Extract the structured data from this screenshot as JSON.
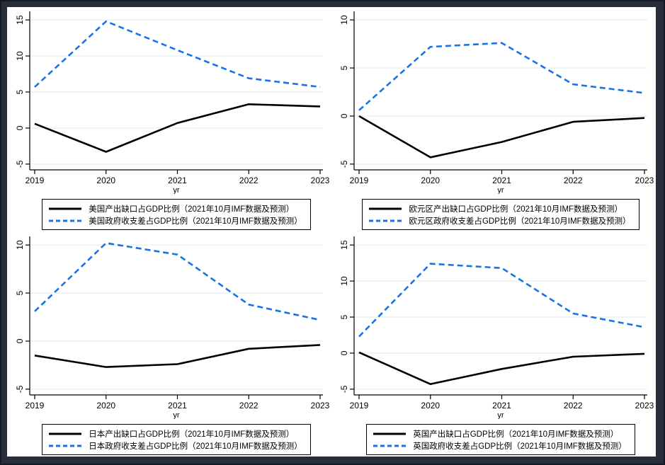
{
  "frame": {
    "border_color": "#151923",
    "background": "#272d3b",
    "panel_background": "#ffffff"
  },
  "colors": {
    "output_gap_line": "#000000",
    "fiscal_balance_line": "#1873e8",
    "gridline": "#e9f0f1",
    "axis": "#000000",
    "text": "#000000"
  },
  "chart_data": [
    {
      "type": "line",
      "position": "top-left",
      "region": "美国",
      "x": [
        2019,
        2020,
        2021,
        2022,
        2023
      ],
      "x_tick_labels": [
        "2019",
        "2020",
        "2021",
        "2022",
        "2023"
      ],
      "xlabel": "yr",
      "y_ticks": [
        -5,
        0,
        5,
        10,
        15
      ],
      "y_tick_labels": [
        "-5",
        "0",
        "5",
        "10",
        "15"
      ],
      "ylim": [
        -5.8,
        15.8
      ],
      "grid": true,
      "legend_position": "below",
      "series": [
        {
          "name": "美国产出缺口占GDP比例（2021年10月IMF数据及预测）",
          "line_style": "solid",
          "color": "#000000",
          "values": [
            0.6,
            -3.3,
            0.7,
            3.3,
            3.0
          ]
        },
        {
          "name": "美国政府收支差占GDP比例（2021年10月IMF数据及预测）",
          "line_style": "dashed",
          "color": "#1873e8",
          "values": [
            5.7,
            14.8,
            10.8,
            6.9,
            5.7
          ]
        }
      ]
    },
    {
      "type": "line",
      "position": "top-right",
      "region": "欧元区",
      "x": [
        2019,
        2020,
        2021,
        2022,
        2023
      ],
      "x_tick_labels": [
        "2019",
        "2020",
        "2021",
        "2022",
        "2023"
      ],
      "xlabel": "yr",
      "y_ticks": [
        -5,
        0,
        5,
        10
      ],
      "y_tick_labels": [
        "-5",
        "0",
        "5",
        "10"
      ],
      "ylim": [
        -5.6,
        10.6
      ],
      "grid": true,
      "legend_position": "below",
      "series": [
        {
          "name": "欧元区产出缺口占GDP比例（2021年10月IMF数据及预测）",
          "line_style": "solid",
          "color": "#000000",
          "values": [
            0.0,
            -4.3,
            -2.7,
            -0.6,
            -0.2
          ]
        },
        {
          "name": "欧元区政府收支差占GDP比例（2021年10月IMF数据及预测）",
          "line_style": "dashed",
          "color": "#1873e8",
          "values": [
            0.6,
            7.2,
            7.6,
            3.3,
            2.4
          ]
        }
      ]
    },
    {
      "type": "line",
      "position": "bottom-left",
      "region": "日本",
      "x": [
        2019,
        2020,
        2021,
        2022,
        2023
      ],
      "x_tick_labels": [
        "2019",
        "2020",
        "2021",
        "2022",
        "2023"
      ],
      "xlabel": "yr",
      "y_ticks": [
        -5,
        0,
        5,
        10
      ],
      "y_tick_labels": [
        "-5",
        "0",
        "5",
        "10"
      ],
      "ylim": [
        -5.6,
        10.6
      ],
      "grid": true,
      "legend_position": "below",
      "series": [
        {
          "name": "日本产出缺口占GDP比例（2021年10月IMF数据及预测）",
          "line_style": "solid",
          "color": "#000000",
          "values": [
            -1.5,
            -2.7,
            -2.4,
            -0.8,
            -0.4
          ]
        },
        {
          "name": "日本政府收支差占GDP比例（2021年10月IMF数据及预测）",
          "line_style": "dashed",
          "color": "#1873e8",
          "values": [
            3.1,
            10.2,
            9.0,
            3.8,
            2.2
          ]
        }
      ]
    },
    {
      "type": "line",
      "position": "bottom-right",
      "region": "英国",
      "x": [
        2019,
        2020,
        2021,
        2022,
        2023
      ],
      "x_tick_labels": [
        "2019",
        "2020",
        "2021",
        "2022",
        "2023"
      ],
      "xlabel": "yr",
      "y_ticks": [
        -5,
        0,
        5,
        10,
        15
      ],
      "y_tick_labels": [
        "-5",
        "0",
        "5",
        "10",
        "15"
      ],
      "ylim": [
        -5.8,
        15.8
      ],
      "grid": true,
      "legend_position": "below",
      "series": [
        {
          "name": "英国产出缺口占GDP比例（2021年10月IMF数据及预测）",
          "line_style": "solid",
          "color": "#000000",
          "values": [
            0.1,
            -4.3,
            -2.2,
            -0.5,
            -0.1
          ]
        },
        {
          "name": "英国政府收支差占GDP比例（2021年10月IMF数据及预测）",
          "line_style": "dashed",
          "color": "#1873e8",
          "values": [
            2.3,
            12.4,
            11.8,
            5.5,
            3.6
          ]
        }
      ]
    }
  ]
}
